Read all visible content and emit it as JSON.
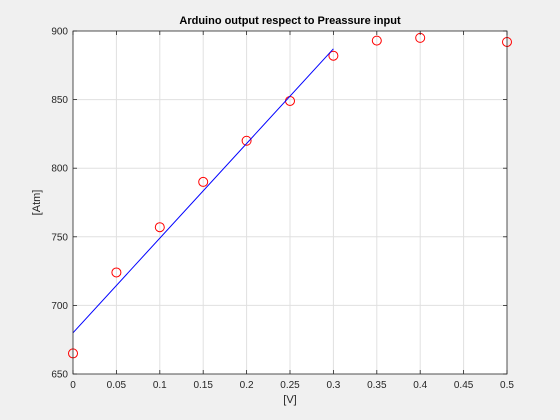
{
  "chart_data": {
    "type": "scatter",
    "title": "Arduino output respect to Preassure input",
    "xlabel": "[V]",
    "ylabel": "[Atm]",
    "xlim": [
      0,
      0.5
    ],
    "ylim": [
      650,
      900
    ],
    "xticks": [
      0,
      0.05,
      0.1,
      0.15,
      0.2,
      0.25,
      0.3,
      0.35,
      0.4,
      0.45,
      0.5
    ],
    "xtick_labels": [
      "0",
      "0.05",
      "0.1",
      "0.15",
      "0.2",
      "0.25",
      "0.3",
      "0.35",
      "0.4",
      "0.45",
      "0.5"
    ],
    "yticks": [
      650,
      700,
      750,
      800,
      850,
      900
    ],
    "ytick_labels": [
      "650",
      "700",
      "750",
      "800",
      "850",
      "900"
    ],
    "grid": true,
    "series": [
      {
        "kind": "scatter",
        "marker": "circle",
        "color": "#ff0000",
        "x": [
          0,
          0.05,
          0.1,
          0.15,
          0.2,
          0.25,
          0.3,
          0.35,
          0.4,
          0.5
        ],
        "y": [
          665,
          724,
          757,
          790,
          820,
          849,
          882,
          893,
          895,
          892
        ]
      },
      {
        "kind": "line",
        "color": "#0000ff",
        "x": [
          0,
          0.3
        ],
        "y": [
          680,
          887
        ]
      }
    ]
  }
}
